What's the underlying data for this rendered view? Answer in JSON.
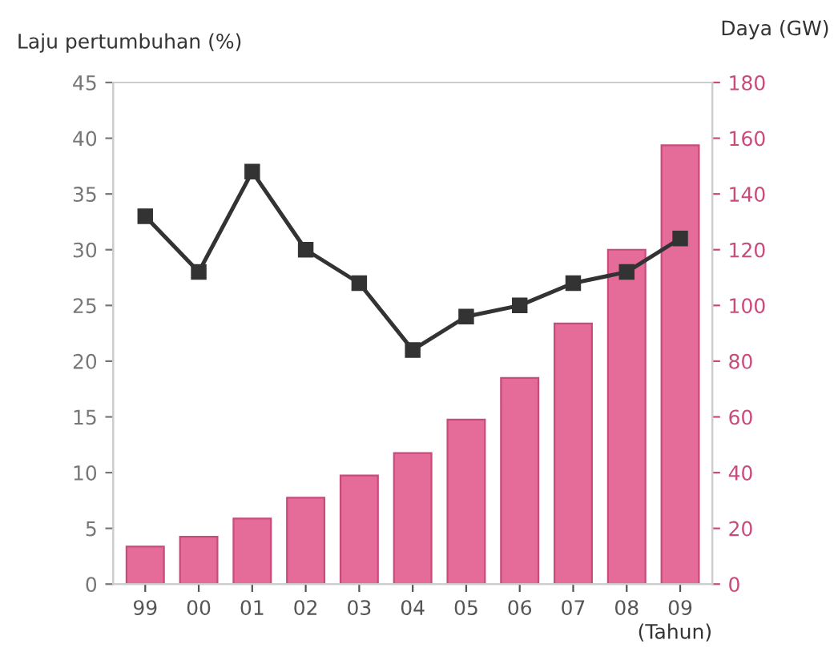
{
  "chart_data": {
    "type": "bar",
    "categories": [
      "99",
      "00",
      "01",
      "02",
      "03",
      "04",
      "05",
      "06",
      "07",
      "08",
      "09"
    ],
    "xlabel": "(Tahun)",
    "ylabel": "Laju pertumbuhan (%)",
    "y2label": "Daya (GW)",
    "series": [
      {
        "axis": "y2",
        "color": "#e56b98",
        "values": [
          13.5,
          17,
          23.5,
          31,
          39,
          47,
          59,
          74,
          93.5,
          120,
          157.5
        ]
      },
      {
        "type": "line",
        "axis": "y",
        "color": "#333333",
        "marker": "square",
        "values": [
          33,
          28,
          37,
          30,
          27,
          21,
          24,
          25,
          27,
          28,
          31
        ]
      }
    ],
    "ylim": [
      0,
      45
    ],
    "yticks": [
      0,
      5,
      10,
      15,
      20,
      25,
      30,
      35,
      40,
      45
    ],
    "y2lim": [
      0,
      180
    ],
    "y2ticks": [
      0,
      20,
      40,
      60,
      80,
      100,
      120,
      140,
      160,
      180
    ],
    "grid": false,
    "legend": false
  }
}
